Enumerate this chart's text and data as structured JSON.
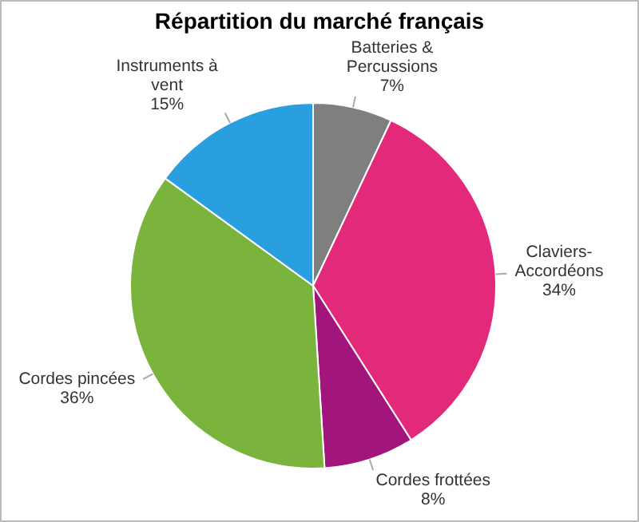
{
  "chart_data": {
    "type": "pie",
    "title": "Répartition du marché français",
    "categories": [
      "Batteries & Percussions",
      "Claviers-Accordéons",
      "Cordes frottées",
      "Cordes pincées",
      "Instruments à vent"
    ],
    "values": [
      7,
      34,
      8,
      36,
      15
    ],
    "colors": [
      "#7f7f7f",
      "#e3297a",
      "#a2157c",
      "#7ab43c",
      "#2a9fdf"
    ],
    "value_labels": [
      "7%",
      "34%",
      "8%",
      "36%",
      "15%"
    ]
  }
}
